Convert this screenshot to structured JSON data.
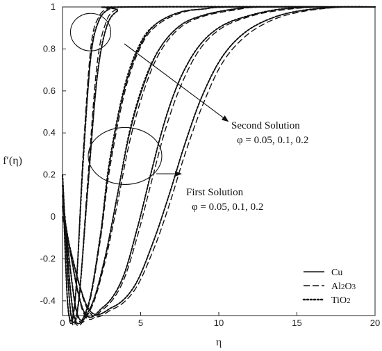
{
  "chart_data": {
    "type": "line",
    "xlabel": "η",
    "ylabel": "f′(η)",
    "xlim": [
      0,
      20
    ],
    "ylim": [
      -0.47,
      1.0
    ],
    "x_ticks": [
      0,
      5,
      10,
      15,
      20
    ],
    "y_ticks": [
      -0.4,
      -0.2,
      0,
      0.2,
      0.4,
      0.6,
      0.8,
      1
    ],
    "x_tick_labels": [
      "0",
      "5",
      "10",
      "15",
      "20"
    ],
    "y_tick_labels": [
      "-0.4",
      "-0.2",
      "0",
      "0.2",
      "0.4",
      "0.6",
      "0.8",
      "1"
    ],
    "grid": false,
    "legend_position": "bottom-right",
    "legend": [
      {
        "label": "Cu",
        "style": "solid"
      },
      {
        "label": "Al2O3",
        "style": "dashed"
      },
      {
        "label": "TiO2",
        "style": "dotted"
      }
    ],
    "annotations": [
      {
        "line1": "Second Solution",
        "line2": "φ = 0.05, 0.1, 0.2",
        "circle_center": [
          1.8,
          0.88
        ],
        "arrow_to": [
          10.6,
          0.455
        ]
      },
      {
        "line1": "First Solution",
        "line2": "φ = 0.05, 0.1, 0.2",
        "circle_center": [
          4.0,
          0.29
        ],
        "arrow_to": [
          7.6,
          0.205
        ]
      }
    ],
    "series": [
      {
        "style": "solid",
        "x": [
          0,
          0.35,
          0.8,
          1.3,
          1.8,
          2.3,
          3.0,
          4.0
        ],
        "y": [
          0.2,
          -0.43,
          -0.4,
          0.25,
          0.75,
          0.93,
          0.99,
          1.0
        ]
      },
      {
        "style": "dashed",
        "x": [
          0,
          0.35,
          0.8,
          1.3,
          1.8,
          2.3,
          3.0,
          4.0
        ],
        "y": [
          0.2,
          -0.44,
          -0.41,
          0.28,
          0.8,
          0.95,
          0.995,
          1.0
        ]
      },
      {
        "style": "dotted",
        "x": [
          0,
          0.35,
          0.8,
          1.3,
          1.8,
          2.3,
          3.0,
          4.0
        ],
        "y": [
          0.2,
          -0.43,
          -0.4,
          0.24,
          0.76,
          0.93,
          0.99,
          1.0
        ]
      },
      {
        "style": "solid",
        "x": [
          0,
          0.5,
          1.0,
          1.6,
          2.2,
          2.8,
          3.5,
          4.5
        ],
        "y": [
          0.2,
          -0.44,
          -0.42,
          0.12,
          0.65,
          0.9,
          0.98,
          1.0
        ]
      },
      {
        "style": "dashed",
        "x": [
          0,
          0.5,
          1.0,
          1.6,
          2.2,
          2.8,
          3.5,
          4.5
        ],
        "y": [
          0.2,
          -0.45,
          -0.43,
          0.16,
          0.72,
          0.93,
          0.99,
          1.0
        ]
      },
      {
        "style": "dotted",
        "x": [
          0,
          0.5,
          1.0,
          1.6,
          2.2,
          2.8,
          3.5,
          4.5
        ],
        "y": [
          0.2,
          -0.44,
          -0.42,
          0.12,
          0.66,
          0.9,
          0.98,
          1.0
        ]
      },
      {
        "style": "solid",
        "x": [
          0,
          0.7,
          1.6,
          2.4,
          3.0,
          4.0,
          5.0,
          6.0,
          7.5,
          9.0,
          11.0
        ],
        "y": [
          0.15,
          -0.46,
          -0.43,
          -0.1,
          0.25,
          0.62,
          0.82,
          0.92,
          0.975,
          0.99,
          1.0
        ]
      },
      {
        "style": "dashed",
        "x": [
          0,
          0.7,
          1.6,
          2.4,
          3.0,
          4.0,
          5.0,
          6.0,
          7.5,
          9.0,
          11.0
        ],
        "y": [
          0.15,
          -0.47,
          -0.44,
          -0.12,
          0.22,
          0.6,
          0.81,
          0.91,
          0.97,
          0.99,
          1.0
        ]
      },
      {
        "style": "dotted",
        "x": [
          0,
          0.7,
          1.6,
          2.4,
          3.0,
          4.0,
          5.0,
          6.0,
          7.5,
          9.0,
          11.0
        ],
        "y": [
          0.15,
          -0.46,
          -0.43,
          -0.1,
          0.26,
          0.63,
          0.83,
          0.92,
          0.975,
          0.99,
          1.0
        ]
      },
      {
        "style": "solid",
        "x": [
          0,
          0.9,
          1.8,
          2.7,
          3.5,
          4.3,
          5.2,
          6.2,
          7.5,
          9.0,
          11.0,
          13.0
        ],
        "y": [
          0.1,
          -0.45,
          -0.43,
          -0.2,
          0.1,
          0.4,
          0.63,
          0.8,
          0.91,
          0.96,
          0.99,
          1.0
        ]
      },
      {
        "style": "dashed",
        "x": [
          0,
          0.9,
          1.8,
          2.7,
          3.5,
          4.3,
          5.2,
          6.2,
          7.5,
          9.0,
          11.0,
          13.0
        ],
        "y": [
          0.1,
          -0.46,
          -0.44,
          -0.22,
          0.06,
          0.36,
          0.6,
          0.78,
          0.9,
          0.955,
          0.985,
          1.0
        ]
      },
      {
        "style": "dotted",
        "x": [
          0,
          0.9,
          1.8,
          2.7,
          3.5,
          4.3,
          5.2,
          6.2,
          7.5,
          9.0,
          11.0,
          13.0
        ],
        "y": [
          0.1,
          -0.45,
          -0.43,
          -0.2,
          0.1,
          0.41,
          0.64,
          0.8,
          0.91,
          0.96,
          0.99,
          1.0
        ]
      },
      {
        "style": "solid",
        "x": [
          0,
          1.3,
          2.6,
          3.8,
          4.8,
          5.7,
          6.6,
          7.6,
          8.8,
          10.2,
          12.0,
          14.0,
          16.5
        ],
        "y": [
          0.05,
          -0.44,
          -0.43,
          -0.3,
          -0.05,
          0.22,
          0.47,
          0.67,
          0.82,
          0.91,
          0.96,
          0.99,
          1.0
        ]
      },
      {
        "style": "dashed",
        "x": [
          0,
          1.3,
          2.6,
          3.8,
          4.8,
          5.7,
          6.6,
          7.6,
          8.8,
          10.2,
          12.0,
          14.0,
          16.5
        ],
        "y": [
          0.05,
          -0.45,
          -0.44,
          -0.32,
          -0.09,
          0.17,
          0.42,
          0.63,
          0.8,
          0.9,
          0.955,
          0.985,
          1.0
        ]
      },
      {
        "style": "dotted",
        "x": [
          0,
          1.3,
          2.6,
          3.8,
          4.8,
          5.7,
          6.6,
          7.6,
          8.8,
          10.2,
          12.0,
          14.0,
          16.5
        ],
        "y": [
          0.05,
          -0.44,
          -0.43,
          -0.3,
          -0.05,
          0.22,
          0.47,
          0.67,
          0.82,
          0.91,
          0.96,
          0.99,
          1.0
        ]
      },
      {
        "style": "solid",
        "x": [
          0,
          1.6,
          3.2,
          4.6,
          5.8,
          6.8,
          7.8,
          8.9,
          10.2,
          11.7,
          13.5,
          15.5,
          18.0
        ],
        "y": [
          0.0,
          -0.43,
          -0.43,
          -0.33,
          -0.12,
          0.1,
          0.34,
          0.57,
          0.76,
          0.88,
          0.95,
          0.985,
          1.0
        ]
      },
      {
        "style": "dashed",
        "x": [
          0,
          1.6,
          3.2,
          4.6,
          5.8,
          6.8,
          7.8,
          8.9,
          10.2,
          11.7,
          13.5,
          15.5,
          18.0
        ],
        "y": [
          0.0,
          -0.44,
          -0.44,
          -0.35,
          -0.16,
          0.05,
          0.29,
          0.52,
          0.73,
          0.86,
          0.94,
          0.98,
          1.0
        ]
      },
      {
        "style": "dotted",
        "x": [
          0,
          1.6,
          3.2,
          4.6,
          5.8,
          6.8,
          7.8,
          8.9,
          10.2,
          11.7,
          13.5,
          15.5,
          18.0
        ],
        "y": [
          0.0,
          -0.43,
          -0.43,
          -0.33,
          -0.12,
          0.1,
          0.34,
          0.57,
          0.76,
          0.88,
          0.95,
          0.985,
          1.0
        ]
      }
    ]
  }
}
